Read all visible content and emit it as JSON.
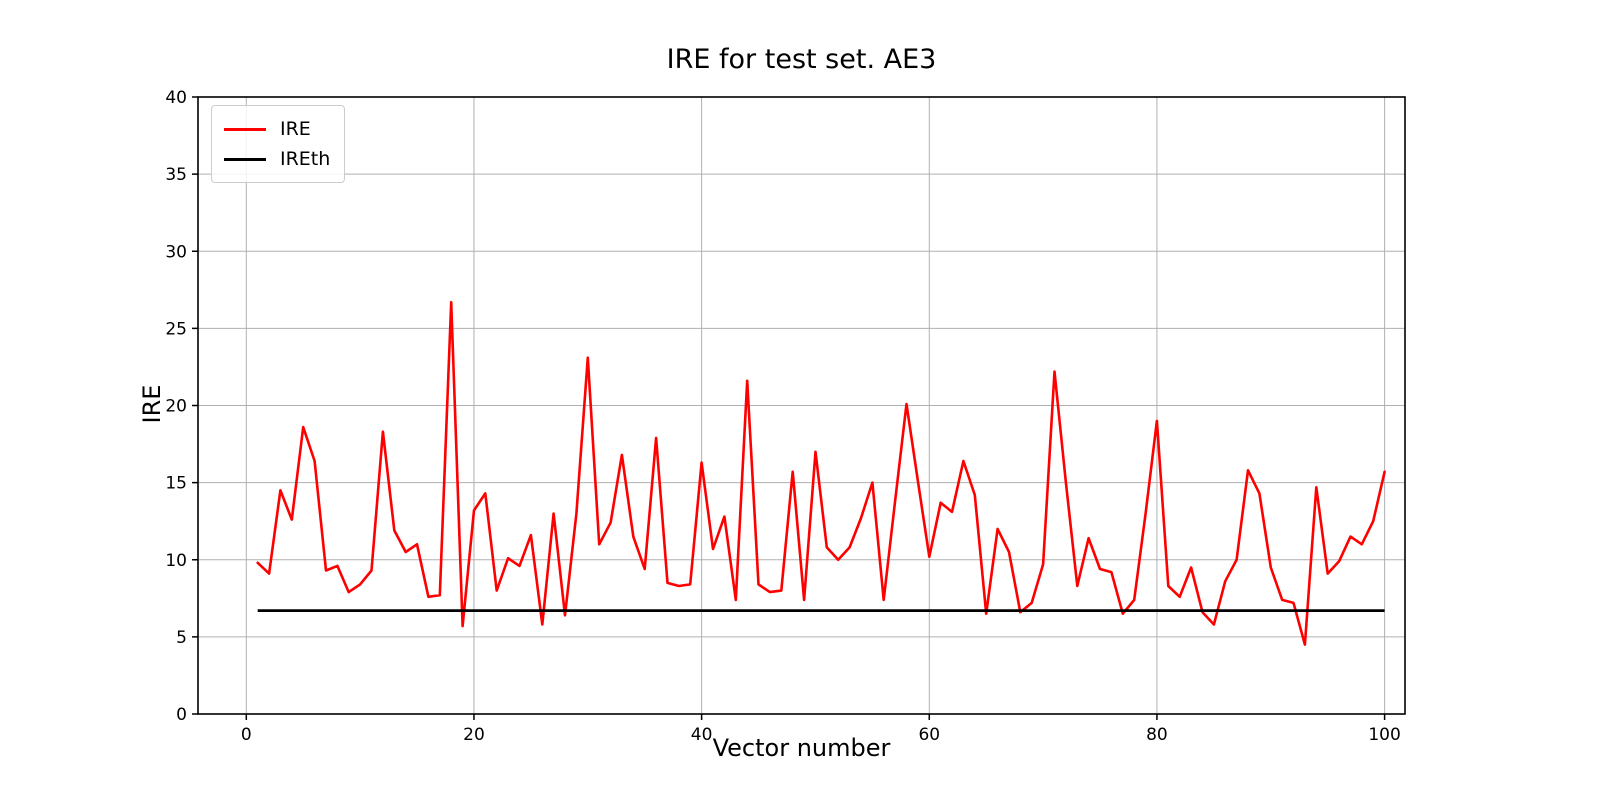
{
  "chart_data": {
    "type": "line",
    "title": "IRE for test set. AE3",
    "xlabel": "Vector number",
    "ylabel": "IRE",
    "x_start": 1,
    "xticks": [
      0,
      20,
      40,
      60,
      80,
      100
    ],
    "yticks": [
      0,
      5,
      10,
      15,
      20,
      25,
      30,
      35,
      40
    ],
    "xlim": [
      -4.2,
      101.8
    ],
    "ylim": [
      0,
      40
    ],
    "grid": true,
    "legend_position": "upper-left",
    "series": [
      {
        "name": "IRE",
        "type": "line",
        "color": "#ff0000",
        "values": [
          9.8,
          9.1,
          14.5,
          12.6,
          18.6,
          16.4,
          9.3,
          9.6,
          7.9,
          8.4,
          9.3,
          18.3,
          11.9,
          10.5,
          11.0,
          7.6,
          7.7,
          26.7,
          5.7,
          13.2,
          14.3,
          8.0,
          10.1,
          9.6,
          11.6,
          5.8,
          13.0,
          6.4,
          13.0,
          23.1,
          11.0,
          12.4,
          16.8,
          11.5,
          9.4,
          17.9,
          8.5,
          8.3,
          8.4,
          16.3,
          10.7,
          12.8,
          7.4,
          21.6,
          8.4,
          7.9,
          8.0,
          15.7,
          7.4,
          17.0,
          10.8,
          10.0,
          10.8,
          12.7,
          15.0,
          7.4,
          13.8,
          20.1,
          15.1,
          10.2,
          13.7,
          13.1,
          16.4,
          14.2,
          6.5,
          12.0,
          10.5,
          6.6,
          7.2,
          9.7,
          22.2,
          15.0,
          8.3,
          11.4,
          9.4,
          9.2,
          6.5,
          7.4,
          13.0,
          19.0,
          8.3,
          7.6,
          9.5,
          6.6,
          5.8,
          8.6,
          10.0,
          15.8,
          14.3,
          9.5,
          7.4,
          7.2,
          4.5,
          14.7,
          9.1,
          9.9,
          11.5,
          11.0,
          12.5,
          15.7
        ]
      },
      {
        "name": "IREth",
        "type": "hline",
        "color": "#000000",
        "value": 6.7,
        "x_range": [
          1,
          100
        ]
      }
    ]
  }
}
